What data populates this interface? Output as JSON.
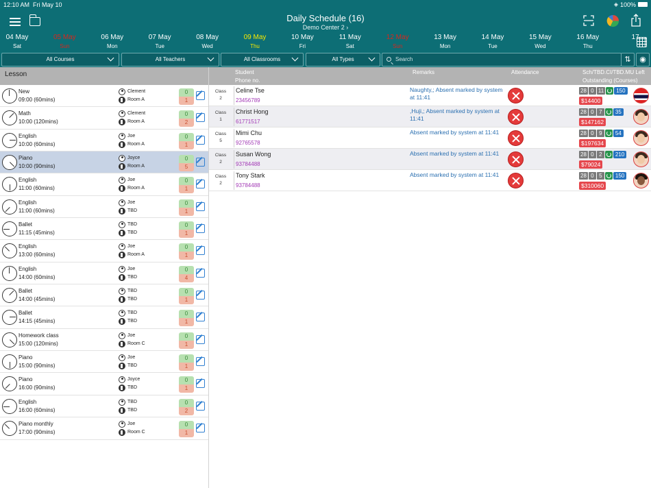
{
  "status_bar": {
    "time": "12:10 AM",
    "day": "Fri May 10",
    "battery": "100%"
  },
  "header": {
    "title": "Daily Schedule (16)",
    "subtitle": "Demo Center 2 ›"
  },
  "dates": [
    {
      "date": "04 May",
      "day": "Sat",
      "state": "normal"
    },
    {
      "date": "05 May",
      "day": "Sun",
      "state": "holiday"
    },
    {
      "date": "06 May",
      "day": "Mon",
      "state": "normal"
    },
    {
      "date": "07 May",
      "day": "Tue",
      "state": "normal"
    },
    {
      "date": "08 May",
      "day": "Wed",
      "state": "normal"
    },
    {
      "date": "09 May",
      "day": "Thu",
      "state": "today"
    },
    {
      "date": "10 May",
      "day": "Fri",
      "state": "normal"
    },
    {
      "date": "11 May",
      "day": "Sat",
      "state": "normal"
    },
    {
      "date": "12 May",
      "day": "Sun",
      "state": "holiday"
    },
    {
      "date": "13 May",
      "day": "Mon",
      "state": "normal"
    },
    {
      "date": "14 May",
      "day": "Tue",
      "state": "normal"
    },
    {
      "date": "15 May",
      "day": "Wed",
      "state": "normal"
    },
    {
      "date": "16 May",
      "day": "Thu",
      "state": "normal"
    },
    {
      "date": "17",
      "day": "",
      "state": "normal"
    }
  ],
  "filters": {
    "courses": "All Courses",
    "teachers": "All Teachers",
    "classrooms": "All Classrooms",
    "types": "All Types",
    "search_placeholder": "Search"
  },
  "lesson_header": "Lesson",
  "lessons": [
    {
      "name": "New",
      "time": "09:00 (60mins)",
      "teacher": "Clement",
      "room": "Room A",
      "c0": "0",
      "c1": "1"
    },
    {
      "name": "Math",
      "time": "10:00 (120mins)",
      "teacher": "Clement",
      "room": "Room A",
      "c0": "0",
      "c1": "2"
    },
    {
      "name": "English",
      "time": "10:00 (60mins)",
      "teacher": "Joe",
      "room": "Room A",
      "c0": "0",
      "c1": "1"
    },
    {
      "name": "Piano",
      "time": "10:00 (90mins)",
      "teacher": "Joyce",
      "room": "Room A",
      "c0": "0",
      "c1": "5",
      "selected": true
    },
    {
      "name": "English",
      "time": "11:00 (60mins)",
      "teacher": "Joe",
      "room": "Room A",
      "c0": "0",
      "c1": "1"
    },
    {
      "name": "English",
      "time": "11:00 (60mins)",
      "teacher": "Joe",
      "room": "TBD",
      "c0": "0",
      "c1": "1"
    },
    {
      "name": "Ballet",
      "time": "11:15 (45mins)",
      "teacher": "TBD",
      "room": "TBD",
      "c0": "0",
      "c1": "1"
    },
    {
      "name": "English",
      "time": "13:00 (60mins)",
      "teacher": "Joe",
      "room": "Room A",
      "c0": "0",
      "c1": "1"
    },
    {
      "name": "English",
      "time": "14:00 (60mins)",
      "teacher": "Joe",
      "room": "TBD",
      "c0": "0",
      "c1": "4"
    },
    {
      "name": "Ballet",
      "time": "14:00 (45mins)",
      "teacher": "TBD",
      "room": "TBD",
      "c0": "0",
      "c1": "1"
    },
    {
      "name": "Ballet",
      "time": "14:15 (45mins)",
      "teacher": "TBD",
      "room": "TBD",
      "c0": "0",
      "c1": "1"
    },
    {
      "name": "Homework class",
      "time": "15:00 (120mins)",
      "teacher": "Joe",
      "room": "Room C",
      "c0": "0",
      "c1": "1"
    },
    {
      "name": "Piano",
      "time": "15:00 (90mins)",
      "teacher": "Joe",
      "room": "TBD",
      "c0": "0",
      "c1": "1"
    },
    {
      "name": "Piano",
      "time": "16:00 (90mins)",
      "teacher": "Joyce",
      "room": "TBD",
      "c0": "0",
      "c1": "1"
    },
    {
      "name": "English",
      "time": "16:00 (60mins)",
      "teacher": "TBD",
      "room": "TBD",
      "c0": "0",
      "c1": "2"
    },
    {
      "name": "Piano monthly",
      "time": "17:00 (90mins)",
      "teacher": "Joe",
      "room": "Room C",
      "c0": "0",
      "c1": "1"
    }
  ],
  "student_header": {
    "student": "Student",
    "phone": "Phone no.",
    "remarks": "Remarks",
    "attendance": "Attendance",
    "left": "Sch/TBD.CI/TBD.MU Left",
    "outstanding": "Outstanding (Courses)"
  },
  "students": [
    {
      "class_label": "Class",
      "class_no": "2",
      "name": "Celine Tse",
      "phone": "23456789",
      "remark": "Naughty,; Absent marked by system at 11:41",
      "sch": "28",
      "tbd_ci": "0",
      "tbd_mu": "11",
      "left": "150",
      "outstanding": "$14400",
      "avatar": "flag"
    },
    {
      "class_label": "Class",
      "class_no": "1",
      "name": "Christ Hong",
      "phone": "61771517",
      "remark": ",Huji,; Absent marked by system at 11:41",
      "sch": "28",
      "tbd_ci": "0",
      "tbd_mu": "7",
      "left": "35",
      "outstanding": "$147162",
      "avatar": "girl"
    },
    {
      "class_label": "Class",
      "class_no": "5",
      "name": "Mimi Chu",
      "phone": "92765578",
      "remark": "Absent marked by system at 11:41",
      "sch": "28",
      "tbd_ci": "0",
      "tbd_mu": "9",
      "left": "54",
      "outstanding": "$197634",
      "avatar": "girl"
    },
    {
      "class_label": "Class",
      "class_no": "2",
      "name": "Susan Wong",
      "phone": "93784488",
      "remark": "Absent marked by system at 11:41",
      "sch": "28",
      "tbd_ci": "0",
      "tbd_mu": "2",
      "left": "210",
      "outstanding": "$79024",
      "avatar": "girl"
    },
    {
      "class_label": "Class",
      "class_no": "2",
      "name": "Tony Stark",
      "phone": "93784488",
      "remark": "Absent marked by system at 11:41",
      "sch": "28",
      "tbd_ci": "0",
      "tbd_mu": "5",
      "left": "150",
      "outstanding": "$310060",
      "avatar": "dark"
    }
  ],
  "colors": {
    "header": "#0d6e75",
    "today": "#f5e800",
    "holiday": "#d6271d",
    "selected_row": "#c7d3e5"
  }
}
